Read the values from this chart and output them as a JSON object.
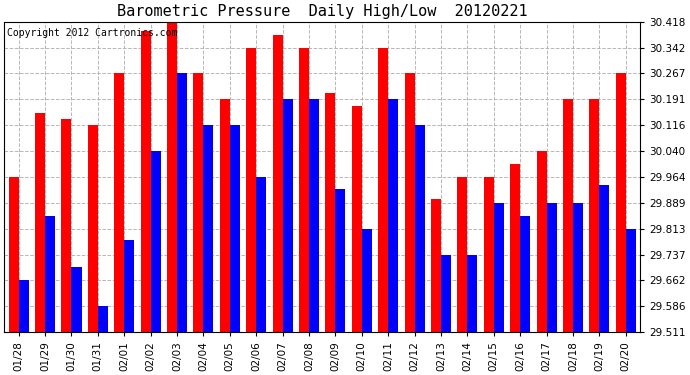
{
  "title": "Barometric Pressure  Daily High/Low  20120221",
  "copyright": "Copyright 2012 Cartronics.com",
  "categories": [
    "01/28",
    "01/29",
    "01/30",
    "01/31",
    "02/01",
    "02/02",
    "02/03",
    "02/04",
    "02/05",
    "02/06",
    "02/07",
    "02/08",
    "02/09",
    "02/10",
    "02/11",
    "02/12",
    "02/13",
    "02/14",
    "02/15",
    "02/16",
    "02/17",
    "02/18",
    "02/19",
    "02/20"
  ],
  "highs": [
    29.964,
    30.151,
    30.133,
    30.116,
    30.267,
    30.391,
    30.418,
    30.267,
    30.191,
    30.342,
    30.38,
    30.342,
    30.21,
    30.172,
    30.342,
    30.267,
    29.9,
    29.964,
    29.964,
    30.002,
    30.04,
    30.191,
    30.191,
    30.267
  ],
  "lows": [
    29.662,
    29.851,
    29.7,
    29.586,
    29.779,
    30.04,
    30.267,
    30.116,
    30.116,
    29.964,
    30.191,
    30.191,
    29.93,
    29.813,
    30.191,
    30.116,
    29.737,
    29.737,
    29.889,
    29.851,
    29.889,
    29.889,
    29.94,
    29.813
  ],
  "ymin": 29.511,
  "ymax": 30.418,
  "yticks": [
    29.511,
    29.586,
    29.662,
    29.737,
    29.813,
    29.889,
    29.964,
    30.04,
    30.116,
    30.191,
    30.267,
    30.342,
    30.418
  ],
  "bar_width": 0.38,
  "high_color": "#ff0000",
  "low_color": "#0000ff",
  "bg_color": "#ffffff",
  "grid_color": "#b0b0b0",
  "title_fontsize": 11,
  "copyright_fontsize": 7
}
